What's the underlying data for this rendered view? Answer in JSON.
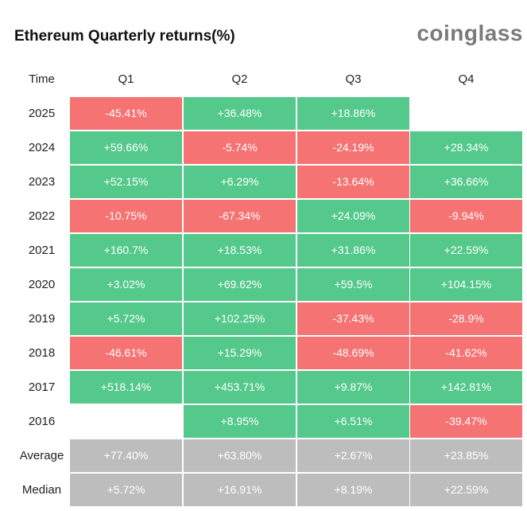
{
  "title": "Ethereum Quarterly returns(%)",
  "brand": "coinglass",
  "colors": {
    "positive": "#54c98b",
    "negative": "#f57373",
    "summary": "#bdbdbd"
  },
  "chart_data": {
    "type": "table",
    "title": "Ethereum Quarterly returns(%)",
    "columns": [
      "Time",
      "Q1",
      "Q2",
      "Q3",
      "Q4"
    ],
    "rows": [
      {
        "label": "2025",
        "values": [
          "-45.41%",
          "+36.48%",
          "+18.86%",
          ""
        ]
      },
      {
        "label": "2024",
        "values": [
          "+59.66%",
          "-5.74%",
          "-24.19%",
          "+28.34%"
        ]
      },
      {
        "label": "2023",
        "values": [
          "+52.15%",
          "+6.29%",
          "-13.64%",
          "+36.66%"
        ]
      },
      {
        "label": "2022",
        "values": [
          "-10.75%",
          "-67.34%",
          "+24.09%",
          "-9.94%"
        ]
      },
      {
        "label": "2021",
        "values": [
          "+160.7%",
          "+18.53%",
          "+31.86%",
          "+22.59%"
        ]
      },
      {
        "label": "2020",
        "values": [
          "+3.02%",
          "+69.62%",
          "+59.5%",
          "+104.15%"
        ]
      },
      {
        "label": "2019",
        "values": [
          "+5.72%",
          "+102.25%",
          "-37.43%",
          "-28.9%"
        ]
      },
      {
        "label": "2018",
        "values": [
          "-46.61%",
          "+15.29%",
          "-48.69%",
          "-41.62%"
        ]
      },
      {
        "label": "2017",
        "values": [
          "+518.14%",
          "+453.71%",
          "+9.87%",
          "+142.81%"
        ]
      },
      {
        "label": "2016",
        "values": [
          "",
          "+8.95%",
          "+6.51%",
          "-39.47%"
        ]
      }
    ],
    "summary": [
      {
        "label": "Average",
        "values": [
          "+77.40%",
          "+63.80%",
          "+2.67%",
          "+23.85%"
        ]
      },
      {
        "label": "Median",
        "values": [
          "+5.72%",
          "+16.91%",
          "+8.19%",
          "+22.59%"
        ]
      }
    ]
  }
}
